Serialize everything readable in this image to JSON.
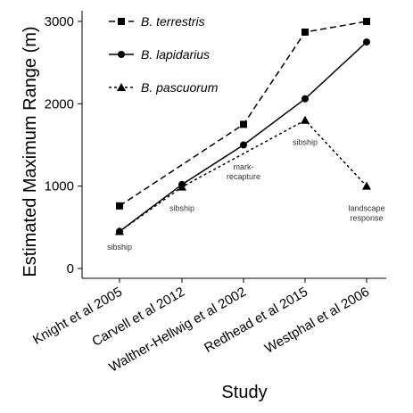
{
  "chart_data": {
    "type": "line",
    "xlabel": "Study",
    "ylabel": "Estimated Maximum Range (m)",
    "categories": [
      "Knight et al 2005",
      "Carvell et al 2012",
      "Walther-Hellwig et al 2002",
      "Redhead et al 2015",
      "Westphal et al 2006"
    ],
    "ylim": [
      0,
      3000
    ],
    "yticks": [
      0,
      1000,
      2000,
      3000
    ],
    "grid": false,
    "legend_position": "top-left",
    "series": [
      {
        "name": "B. terrestris",
        "marker": "square",
        "line": "dashed",
        "values": [
          760,
          null,
          1750,
          2870,
          3000
        ]
      },
      {
        "name": "B. lapidarius",
        "marker": "circle",
        "line": "solid",
        "values": [
          450,
          1020,
          1500,
          2060,
          2750
        ]
      },
      {
        "name": "B. pascuorum",
        "marker": "triangle",
        "line": "dotted",
        "values": [
          450,
          990,
          null,
          1800,
          1000
        ]
      }
    ],
    "annotations": [
      {
        "category": "Knight et al 2005",
        "y": 230,
        "lines": [
          "sibship"
        ]
      },
      {
        "category": "Carvell et al 2012",
        "y": 700,
        "lines": [
          "sibship"
        ]
      },
      {
        "category": "Walther-Hellwig et al 2002",
        "y": 1200,
        "lines": [
          "mark-",
          "recapture"
        ]
      },
      {
        "category": "Redhead et al 2015",
        "y": 1500,
        "lines": [
          "sibship"
        ]
      },
      {
        "category": "Westphal et al 2006",
        "y": 700,
        "lines": [
          "landscape",
          "response"
        ]
      }
    ]
  }
}
